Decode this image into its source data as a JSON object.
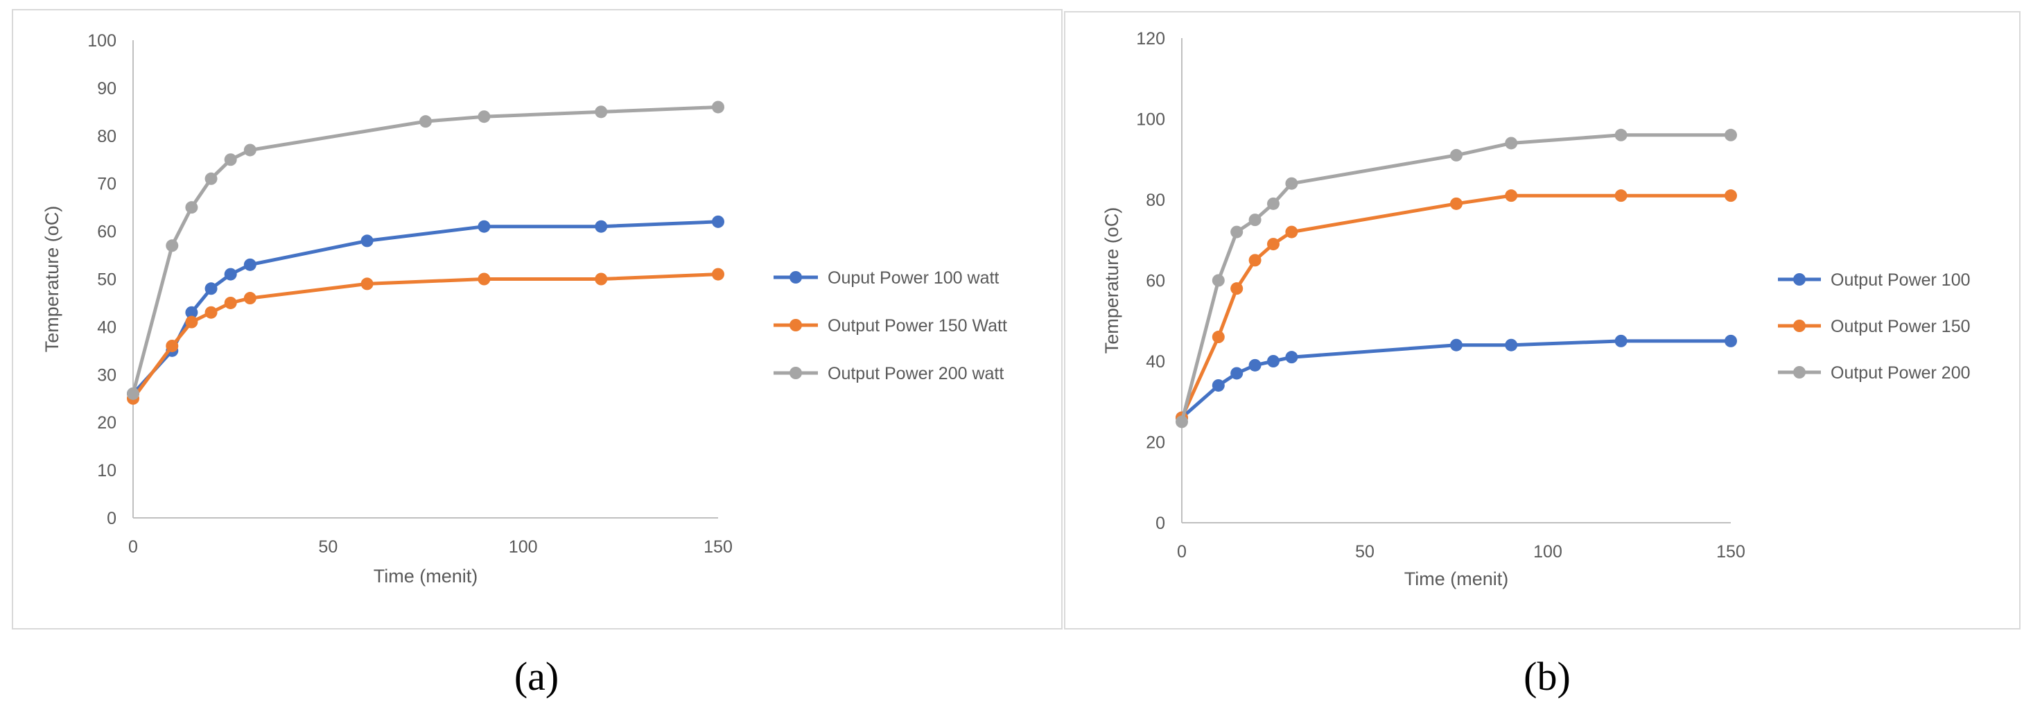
{
  "chart_data": [
    {
      "type": "line",
      "panel_label": "(a)",
      "xlabel": "Time (menit)",
      "ylabel": "Temperature (oC)",
      "xlim": [
        0,
        150
      ],
      "ylim": [
        0,
        100
      ],
      "xticks": [
        0,
        50,
        100,
        150
      ],
      "yticks": [
        0,
        10,
        20,
        30,
        40,
        50,
        60,
        70,
        80,
        90,
        100
      ],
      "grid": false,
      "legend_position": "right",
      "series": [
        {
          "name": "Ouput Power 100 watt",
          "color": "#4472c4",
          "x": [
            0,
            10,
            15,
            20,
            25,
            30,
            60,
            90,
            120,
            150
          ],
          "y": [
            26,
            35,
            43,
            48,
            51,
            53,
            58,
            61,
            61,
            62
          ]
        },
        {
          "name": "Output Power 150 Watt",
          "color": "#ed7d31",
          "x": [
            0,
            10,
            15,
            20,
            25,
            30,
            60,
            90,
            120,
            150
          ],
          "y": [
            25,
            36,
            41,
            43,
            45,
            46,
            49,
            50,
            50,
            51
          ]
        },
        {
          "name": "Output Power 200 watt",
          "color": "#a5a5a5",
          "x": [
            0,
            10,
            15,
            20,
            25,
            30,
            75,
            90,
            120,
            150
          ],
          "y": [
            26,
            57,
            65,
            71,
            75,
            77,
            83,
            84,
            85,
            86
          ]
        }
      ]
    },
    {
      "type": "line",
      "panel_label": "(b)",
      "xlabel": "Time (menit)",
      "ylabel": "Temperature (oC)",
      "xlim": [
        0,
        150
      ],
      "ylim": [
        0,
        120
      ],
      "xticks": [
        0,
        50,
        100,
        150
      ],
      "yticks": [
        0,
        20,
        40,
        60,
        80,
        100,
        120
      ],
      "grid": false,
      "legend_position": "right",
      "series": [
        {
          "name": "Output Power 100",
          "color": "#4472c4",
          "x": [
            0,
            10,
            15,
            20,
            25,
            30,
            75,
            90,
            120,
            150
          ],
          "y": [
            26,
            34,
            37,
            39,
            40,
            41,
            44,
            44,
            45,
            45
          ]
        },
        {
          "name": "Output Power 150",
          "color": "#ed7d31",
          "x": [
            0,
            10,
            15,
            20,
            25,
            30,
            75,
            90,
            120,
            150
          ],
          "y": [
            26,
            46,
            58,
            65,
            69,
            72,
            79,
            81,
            81,
            81
          ]
        },
        {
          "name": "Output Power 200",
          "color": "#a5a5a5",
          "x": [
            0,
            10,
            15,
            20,
            25,
            30,
            75,
            90,
            120,
            150
          ],
          "y": [
            25,
            60,
            72,
            75,
            79,
            84,
            91,
            94,
            96,
            96
          ]
        }
      ]
    }
  ]
}
